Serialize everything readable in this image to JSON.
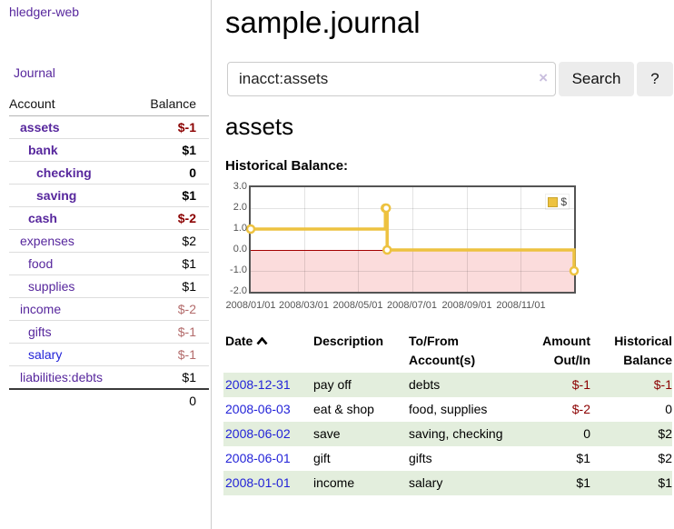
{
  "colors": {
    "linkPurple": "#57279d",
    "linkBlue": "#2323d8",
    "negStrong": "#8b0000",
    "negSoft": "#b36b6b",
    "rowGreen": "#e3eedd",
    "chartLine": "#edc240",
    "chartNegRegion": "#fbdcdc",
    "chartZeroLine": "#a40000"
  },
  "sidebar": {
    "app_title": "hledger-web",
    "journal_label": "Journal",
    "accounts": {
      "header_account": "Account",
      "header_balance": "Balance",
      "rows": [
        {
          "name": "assets",
          "balance": "$-1",
          "indent": 1,
          "bold": true,
          "bal_style": "neg",
          "link": "visited"
        },
        {
          "name": "bank",
          "balance": "$1",
          "indent": 2,
          "bold": true,
          "bal_style": "pos",
          "link": "visited"
        },
        {
          "name": "checking",
          "balance": "0",
          "indent": 3,
          "bold": true,
          "bal_style": "pos",
          "link": "visited"
        },
        {
          "name": "saving",
          "balance": "$1",
          "indent": 3,
          "bold": true,
          "bal_style": "pos",
          "link": "visited"
        },
        {
          "name": "cash",
          "balance": "$-2",
          "indent": 2,
          "bold": true,
          "bal_style": "neg",
          "link": "visited"
        },
        {
          "name": "expenses",
          "balance": "$2",
          "indent": 1,
          "bold": false,
          "bal_style": "pos",
          "link": "visited"
        },
        {
          "name": "food",
          "balance": "$1",
          "indent": 2,
          "bold": false,
          "bal_style": "pos",
          "link": "visited"
        },
        {
          "name": "supplies",
          "balance": "$1",
          "indent": 2,
          "bold": false,
          "bal_style": "pos",
          "link": "visited"
        },
        {
          "name": "income",
          "balance": "$-2",
          "indent": 1,
          "bold": false,
          "bal_style": "negsoft",
          "link": "visited"
        },
        {
          "name": "gifts",
          "balance": "$-1",
          "indent": 2,
          "bold": false,
          "bal_style": "negsoft",
          "link": "visited"
        },
        {
          "name": "salary",
          "balance": "$-1",
          "indent": 2,
          "bold": false,
          "bal_style": "negsoft",
          "link": "unvisited"
        },
        {
          "name": "liabilities:debts",
          "balance": "$1",
          "indent": 1,
          "bold": false,
          "bal_style": "pos",
          "link": "visited"
        }
      ],
      "total": "0"
    }
  },
  "main": {
    "title": "sample.journal",
    "search": {
      "value": "inacct:assets",
      "clear_icon": "×",
      "button_label": "Search",
      "help_label": "?"
    },
    "account_heading": "assets",
    "chart_label": "Historical Balance:"
  },
  "register": {
    "headers": [
      {
        "label": "Date",
        "align": "left",
        "sort": "asc"
      },
      {
        "label": "Description",
        "align": "left"
      },
      {
        "label": "To/From Account(s)",
        "align": "left"
      },
      {
        "label": "Amount Out/In",
        "align": "right"
      },
      {
        "label": "Historical Balance",
        "align": "right"
      }
    ],
    "rows": [
      {
        "date": "2008-12-31",
        "description": "pay off",
        "accounts": "debts",
        "amount": "$-1",
        "amount_negative": true,
        "balance": "$-1",
        "balance_negative": true,
        "highlight": true
      },
      {
        "date": "2008-06-03",
        "description": "eat & shop",
        "accounts": "food, supplies",
        "amount": "$-2",
        "amount_negative": true,
        "balance": "0",
        "balance_negative": false,
        "highlight": false
      },
      {
        "date": "2008-06-02",
        "description": "save",
        "accounts": "saving, checking",
        "amount": "0",
        "amount_negative": false,
        "balance": "$2",
        "balance_negative": false,
        "highlight": true
      },
      {
        "date": "2008-06-01",
        "description": "gift",
        "accounts": "gifts",
        "amount": "$1",
        "amount_negative": false,
        "balance": "$2",
        "balance_negative": false,
        "highlight": false
      },
      {
        "date": "2008-01-01",
        "description": "income",
        "accounts": "salary",
        "amount": "$1",
        "amount_negative": false,
        "balance": "$1",
        "balance_negative": false,
        "highlight": true
      }
    ]
  },
  "chart_data": {
    "type": "line",
    "title": "Historical Balance",
    "series": [
      {
        "name": "$",
        "color": "#edc240",
        "step": true,
        "points": [
          [
            "2008-01-01",
            1
          ],
          [
            "2008-06-01",
            2
          ],
          [
            "2008-06-02",
            2
          ],
          [
            "2008-06-03",
            0
          ],
          [
            "2008-12-31",
            -1
          ]
        ]
      }
    ],
    "x_range": [
      "2008-01-01",
      "2008-12-31"
    ],
    "ylim": [
      -2,
      3
    ],
    "yticks": [
      "3.0",
      "2.0",
      "1.0",
      "0.0",
      "-1.0",
      "-2.0"
    ],
    "xticks": [
      {
        "date": "2008-01-01",
        "label": "2008/01/01",
        "gridline": false
      },
      {
        "date": "2008-03-01",
        "label": "2008/03/01",
        "gridline": true
      },
      {
        "date": "2008-05-01",
        "label": "2008/05/01",
        "gridline": true
      },
      {
        "date": "2008-07-01",
        "label": "2008/07/01",
        "gridline": true
      },
      {
        "date": "2008-09-01",
        "label": "2008/09/01",
        "gridline": true
      },
      {
        "date": "2008-11-01",
        "label": "2008/11/01",
        "gridline": true
      }
    ],
    "grid": true,
    "legend_position": "top-right",
    "negative_region": {
      "below": 0
    }
  }
}
